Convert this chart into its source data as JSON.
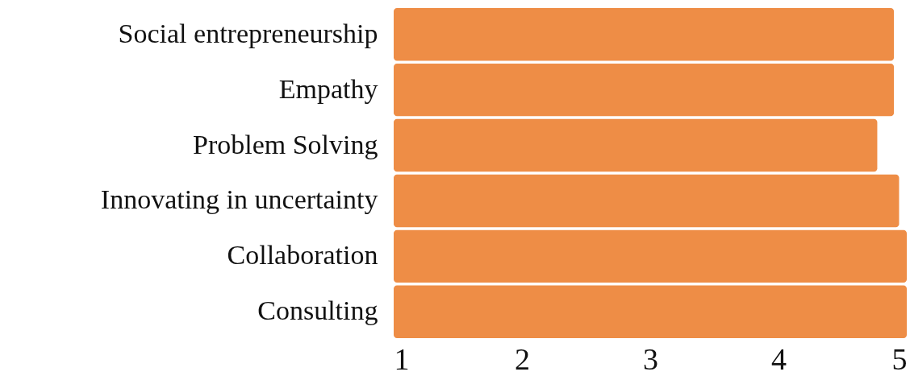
{
  "chart_data": {
    "type": "bar",
    "orientation": "horizontal",
    "categories": [
      "Social entrepreneurship",
      "Empathy",
      "Problem Solving",
      "Innovating in uncertainty",
      "Collaboration",
      "Consulting"
    ],
    "values": [
      4.9,
      4.9,
      4.77,
      4.94,
      5,
      5
    ],
    "color": "#ee8d46",
    "xlim": [
      1,
      5
    ],
    "xticks": [
      1,
      2,
      3,
      4,
      5
    ]
  }
}
